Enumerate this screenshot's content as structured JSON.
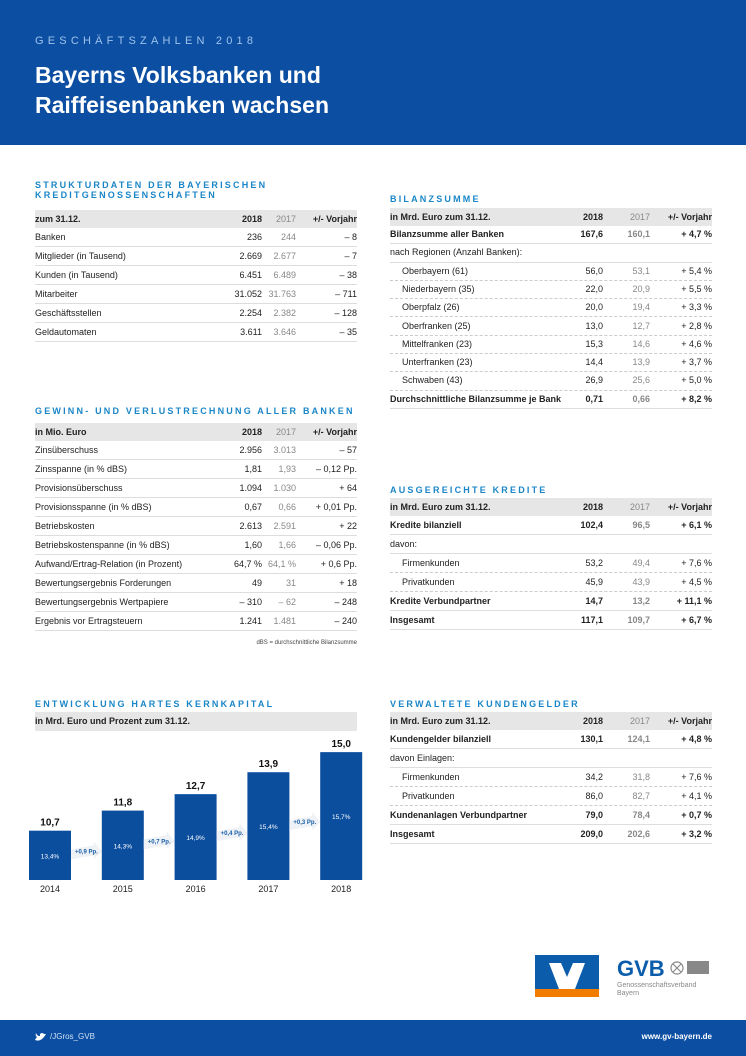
{
  "header": {
    "kicker": "GESCHÄFTSZAHLEN 2018",
    "title_lines": [
      "Bayerns Volksbanken und",
      "Raiffeisenbanken wachsen"
    ]
  },
  "strukturdaten": {
    "title": "STRUKTURDATEN DER BAYERISCHEN KREDITGENOSSENSCHAFTEN",
    "head": [
      "zum 31.12.",
      "2018",
      "2017",
      "+/- Vorjahr"
    ],
    "rows": [
      [
        "Banken",
        "236",
        "244",
        "– 8"
      ],
      [
        "Mitglieder (in Tausend)",
        "2.669",
        "2.677",
        "– 7"
      ],
      [
        "Kunden (in Tausend)",
        "6.451",
        "6.489",
        "– 38"
      ],
      [
        "Mitarbeiter",
        "31.052",
        "31.763",
        "– 711"
      ],
      [
        "Geschäftsstellen",
        "2.254",
        "2.382",
        "– 128"
      ],
      [
        "Geldautomaten",
        "3.611",
        "3.646",
        "– 35"
      ]
    ]
  },
  "gewinn": {
    "title": "GEWINN- UND VERLUSTRECHNUNG ALLER BANKEN",
    "head": [
      "in Mio. Euro",
      "2018",
      "2017",
      "+/- Vorjahr"
    ],
    "rows": [
      [
        "Zinsüberschuss",
        "2.956",
        "3.013",
        "– 57"
      ],
      [
        "Zinsspanne (in % dBS)",
        "1,81",
        "1,93",
        "– 0,12 Pp."
      ],
      [
        "Provisionsüberschuss",
        "1.094",
        "1.030",
        "+ 64"
      ],
      [
        "Provisionsspanne (in % dBS)",
        "0,67",
        "0,66",
        "+ 0,01 Pp."
      ],
      [
        "Betriebskosten",
        "2.613",
        "2.591",
        "+ 22"
      ],
      [
        "Betriebskostenspanne (in % dBS)",
        "1,60",
        "1,66",
        "– 0,06 Pp."
      ],
      [
        "Aufwand/Ertrag-Relation (in Prozent)",
        "64,7 %",
        "64,1 %",
        "+ 0,6 Pp."
      ],
      [
        "Bewertungsergebnis Forderungen",
        "49",
        "31",
        "+ 18"
      ],
      [
        "Bewertungsergebnis Wertpapiere",
        "– 310",
        "– 62",
        "– 248"
      ],
      [
        "Ergebnis vor Ertragsteuern",
        "1.241",
        "1.481",
        "– 240"
      ]
    ],
    "footnote": "dBS = durchschnittliche Bilanzsumme"
  },
  "bilanzsumme": {
    "title": "BILANZSUMME",
    "head": [
      "in Mrd. Euro zum 31.12.",
      "2018",
      "2017",
      "+/- Vorjahr"
    ],
    "rows": [
      [
        "Bilanzsumme aller Banken",
        "167,6",
        "160,1",
        "+ 4,7 %"
      ],
      [
        "nach Regionen (Anzahl Banken):"
      ],
      [
        "Oberbayern (61)",
        "56,0",
        "53,1",
        "+ 5,4 %"
      ],
      [
        "Niederbayern (35)",
        "22,0",
        "20,9",
        "+ 5,5 %"
      ],
      [
        "Oberpfalz (26)",
        "20,0",
        "19,4",
        "+ 3,3 %"
      ],
      [
        "Oberfranken (25)",
        "13,0",
        "12,7",
        "+ 2,8 %"
      ],
      [
        "Mittelfranken (23)",
        "15,3",
        "14,6",
        "+ 4,6 %"
      ],
      [
        "Unterfranken (23)",
        "14,4",
        "13,9",
        "+ 3,7 %"
      ],
      [
        "Schwaben (43)",
        "26,9",
        "25,6",
        "+ 5,0 %"
      ],
      [
        "Durchschnittliche Bilanzsumme je Bank",
        "0,71",
        "0,66",
        "+ 8,2 %"
      ]
    ]
  },
  "kredite": {
    "title": "AUSGEREICHTE KREDITE",
    "head": [
      "in Mrd. Euro zum 31.12.",
      "2018",
      "2017",
      "+/- Vorjahr"
    ],
    "rows": [
      [
        "Kredite bilanziell",
        "102,4",
        "96,5",
        "+ 6,1 %"
      ],
      [
        "davon:"
      ],
      [
        "Firmenkunden",
        "53,2",
        "49,4",
        "+ 7,6 %"
      ],
      [
        "Privatkunden",
        "45,9",
        "43,9",
        "+ 4,5 %"
      ],
      [
        "Kredite Verbundpartner",
        "14,7",
        "13,2",
        "+ 11,1 %"
      ],
      [
        "Insgesamt",
        "117,1",
        "109,7",
        "+ 6,7 %"
      ]
    ]
  },
  "kundengelder": {
    "title": "VERWALTETE KUNDENGELDER",
    "head": [
      "in Mrd. Euro zum 31.12.",
      "2018",
      "2017",
      "+/- Vorjahr"
    ],
    "rows": [
      [
        "Kundengelder bilanziell",
        "130,1",
        "124,1",
        "+ 4,8 %"
      ],
      [
        "davon Einlagen:"
      ],
      [
        "Firmenkunden",
        "34,2",
        "31,8",
        "+ 7,6 %"
      ],
      [
        "Privatkunden",
        "86,0",
        "82,7",
        "+ 4,1 %"
      ],
      [
        "Kundenanlagen Verbundpartner",
        "79,0",
        "78,4",
        "+ 0,7 %"
      ],
      [
        "Insgesamt",
        "209,0",
        "202,6",
        "+ 3,2 %"
      ]
    ]
  },
  "chart_data": {
    "type": "bar",
    "title": "ENTWICKLUNG HARTES KERNKAPITAL",
    "subtitle": "in Mrd. Euro und Prozent zum 31.12.",
    "categories": [
      "2014",
      "2015",
      "2016",
      "2017",
      "2018"
    ],
    "values": [
      10.7,
      11.8,
      12.7,
      13.9,
      15.0
    ],
    "value_labels": [
      "10,7",
      "11,8",
      "12,7",
      "13,9",
      "15,0"
    ],
    "bar_annotations": [
      "13,4%",
      "14,3%",
      "14,9%",
      "15,4%",
      "15,7%"
    ],
    "change_annotations": [
      "+0,9 Pp.",
      "+0,7 Pp.",
      "+0,4 Pp.",
      "+0,3 Pp."
    ],
    "color": "#0b4e9e",
    "ylim": [
      8,
      15.5
    ]
  },
  "logo": {
    "name": "GVB",
    "subtitle_lines": [
      "Genossenschaftsverband",
      "Bayern"
    ]
  },
  "footer": {
    "twitter": "/JGros_GVB",
    "url": "www.gv-bayern.de"
  }
}
